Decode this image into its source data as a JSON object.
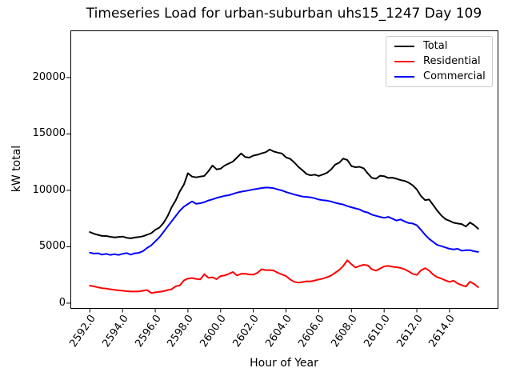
{
  "chart_data": {
    "type": "line",
    "title": "Timeseries Load for urban-suburban uhs15_1247  Day 109",
    "xlabel": "Hour of Year",
    "ylabel": "kW total",
    "xlim": [
      2590.81,
      2616.94
    ],
    "ylim": [
      -430,
      24180
    ],
    "grid": false,
    "legend_position": "upper right",
    "x_start": 2592.0,
    "x_step": 0.25,
    "xticks": {
      "values": [
        2592,
        2594,
        2596,
        2598,
        2600,
        2602,
        2604,
        2606,
        2608,
        2610,
        2612,
        2614
      ],
      "labels": [
        "2592.0",
        "2594.0",
        "2596.0",
        "2598.0",
        "2600.0",
        "2602.0",
        "2604.0",
        "2606.0",
        "2608.0",
        "2610.0",
        "2612.0",
        "2614.0"
      ]
    },
    "yticks": {
      "values": [
        0,
        5000,
        10000,
        15000,
        20000
      ],
      "labels": [
        "0",
        "5000",
        "10000",
        "15000",
        "20000"
      ]
    },
    "series": [
      {
        "name": "Total",
        "color": "#000000",
        "values": [
          6300,
          6150,
          6050,
          5960,
          5950,
          5880,
          5830,
          5870,
          5900,
          5800,
          5750,
          5820,
          5860,
          5930,
          6060,
          6200,
          6500,
          6700,
          7100,
          7700,
          8500,
          9100,
          9900,
          10500,
          11520,
          11220,
          11150,
          11220,
          11280,
          11700,
          12200,
          11860,
          11920,
          12200,
          12380,
          12550,
          12900,
          13270,
          12950,
          12900,
          13080,
          13160,
          13280,
          13380,
          13620,
          13440,
          13340,
          13270,
          12920,
          12800,
          12480,
          12090,
          11780,
          11460,
          11330,
          11390,
          11280,
          11400,
          11550,
          11850,
          12280,
          12450,
          12820,
          12680,
          12150,
          12050,
          12090,
          11950,
          11500,
          11110,
          11030,
          11290,
          11260,
          11100,
          11120,
          11030,
          10910,
          10840,
          10680,
          10440,
          10080,
          9500,
          9140,
          9190,
          8700,
          8200,
          7770,
          7450,
          7300,
          7130,
          7060,
          7010,
          6790,
          7150,
          6920,
          6600
        ]
      },
      {
        "name": "Residential",
        "color": "#ff0000",
        "values": [
          1550,
          1490,
          1400,
          1330,
          1290,
          1230,
          1180,
          1130,
          1100,
          1060,
          1030,
          1030,
          1040,
          1100,
          1160,
          900,
          950,
          1000,
          1060,
          1160,
          1230,
          1490,
          1570,
          2010,
          2180,
          2230,
          2150,
          2110,
          2570,
          2250,
          2290,
          2120,
          2400,
          2460,
          2600,
          2760,
          2460,
          2600,
          2610,
          2540,
          2530,
          2680,
          3000,
          2930,
          2930,
          2880,
          2690,
          2540,
          2400,
          2100,
          1890,
          1820,
          1870,
          1940,
          1930,
          2010,
          2100,
          2170,
          2290,
          2450,
          2690,
          2940,
          3300,
          3800,
          3450,
          3160,
          3300,
          3400,
          3350,
          3000,
          2880,
          3070,
          3260,
          3300,
          3230,
          3190,
          3120,
          3000,
          2820,
          2600,
          2500,
          2900,
          3100,
          2890,
          2530,
          2300,
          2180,
          2020,
          1890,
          1990,
          1750,
          1590,
          1470,
          1900,
          1700,
          1420
        ]
      },
      {
        "name": "Commercial",
        "color": "#0000ff",
        "values": [
          4480,
          4390,
          4420,
          4300,
          4370,
          4270,
          4340,
          4270,
          4370,
          4440,
          4300,
          4420,
          4460,
          4610,
          4890,
          5120,
          5480,
          5830,
          6300,
          6780,
          7250,
          7720,
          8190,
          8550,
          8790,
          9020,
          8810,
          8860,
          8950,
          9100,
          9200,
          9330,
          9420,
          9510,
          9570,
          9680,
          9800,
          9880,
          9940,
          10010,
          10080,
          10140,
          10200,
          10250,
          10240,
          10190,
          10080,
          9990,
          9850,
          9740,
          9630,
          9540,
          9450,
          9420,
          9380,
          9300,
          9190,
          9130,
          9090,
          9020,
          8900,
          8820,
          8740,
          8600,
          8500,
          8400,
          8310,
          8120,
          8030,
          7850,
          7740,
          7650,
          7560,
          7650,
          7490,
          7320,
          7420,
          7250,
          7100,
          7060,
          6900,
          6500,
          6070,
          5700,
          5430,
          5160,
          5050,
          4940,
          4820,
          4770,
          4820,
          4650,
          4700,
          4700,
          4600,
          4540
        ]
      }
    ]
  }
}
